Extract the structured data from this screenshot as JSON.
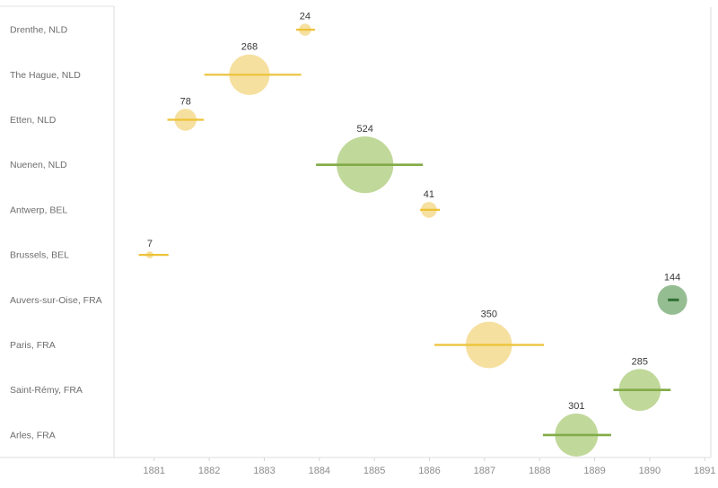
{
  "chart_data": {
    "type": "scatter",
    "subtype": "bubble-timeline-gantt",
    "title": "",
    "xlabel": "",
    "ylabel": "",
    "xlim": [
      1880.27,
      1891.11
    ],
    "grid": false,
    "legend": null,
    "x_axis": {
      "ticks": [
        1881,
        1882,
        1883,
        1884,
        1885,
        1886,
        1887,
        1888,
        1889,
        1890,
        1891
      ]
    },
    "categories": [
      "Drenthe, NLD",
      "The Hague, NLD",
      "Etten, NLD",
      "Nuenen, NLD",
      "Antwerp, BEL",
      "Brussels, BEL",
      "Auvers-sur-Oise, FRA",
      "Paris, FRA",
      "Saint-Rémy, FRA",
      "Arles, FRA"
    ],
    "rows": [
      {
        "place": "Drenthe, NLD",
        "value": 24,
        "start": 1883.58,
        "end": 1883.92,
        "mid": 1883.74,
        "palette": "yellow"
      },
      {
        "place": "The Hague, NLD",
        "value": 268,
        "start": 1881.91,
        "end": 1883.67,
        "mid": 1882.73,
        "palette": "yellow"
      },
      {
        "place": "Etten, NLD",
        "value": 78,
        "start": 1881.24,
        "end": 1881.9,
        "mid": 1881.57,
        "palette": "yellow"
      },
      {
        "place": "Nuenen, NLD",
        "value": 524,
        "start": 1883.94,
        "end": 1885.88,
        "mid": 1884.83,
        "palette": "green"
      },
      {
        "place": "Antwerp, BEL",
        "value": 41,
        "start": 1885.83,
        "end": 1886.19,
        "mid": 1885.99,
        "palette": "yellow"
      },
      {
        "place": "Brussels, BEL",
        "value": 7,
        "start": 1880.72,
        "end": 1881.26,
        "mid": 1880.92,
        "palette": "yellow"
      },
      {
        "place": "Auvers-sur-Oise, FRA",
        "value": 144,
        "start": 1890.33,
        "end": 1890.53,
        "mid": 1890.41,
        "palette": "darkgreen"
      },
      {
        "place": "Paris, FRA",
        "value": 350,
        "start": 1886.09,
        "end": 1888.08,
        "mid": 1887.08,
        "palette": "yellow"
      },
      {
        "place": "Saint-Rémy, FRA",
        "value": 285,
        "start": 1889.34,
        "end": 1890.38,
        "mid": 1889.82,
        "palette": "green"
      },
      {
        "place": "Arles, FRA",
        "value": 301,
        "start": 1888.06,
        "end": 1889.3,
        "mid": 1888.67,
        "palette": "green"
      }
    ]
  },
  "colors": {
    "yellow": {
      "fill": "#f6e0a0",
      "line": "#ecc237",
      "line_width": 2.2
    },
    "green": {
      "fill": "#c0d89a",
      "line": "#82ab47",
      "line_width": 2.6
    },
    "darkgreen": {
      "fill": "#95bd92",
      "line": "#2f6e33",
      "line_width": 3.0
    },
    "border": "#dcdcdc",
    "header_line": "#e2e2e2",
    "tick": "#d7d7d7",
    "axis_text": "#8c8c8c",
    "row_label_text": "#6d6d6d",
    "value_label_text": "#383838",
    "background": "#ffffff"
  }
}
